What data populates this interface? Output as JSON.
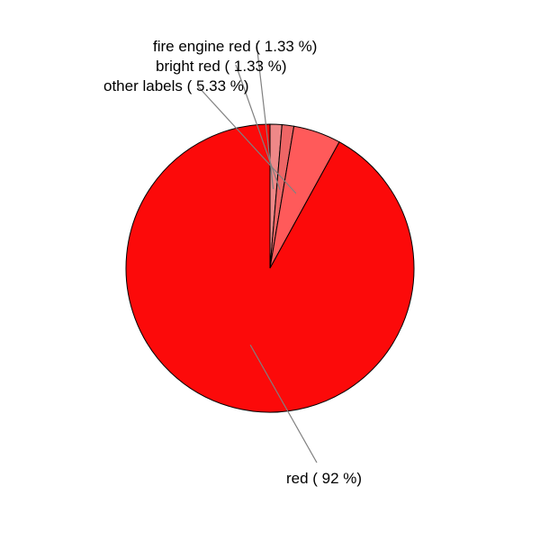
{
  "chart_data": {
    "type": "pie",
    "title": "",
    "direction": "clockwise",
    "start_angle": "12 o'clock",
    "slices": [
      {
        "label": "fire engine red ( 1.33 %)",
        "value": 1.33,
        "color": "#ee8888"
      },
      {
        "label": "bright red ( 1.33 %)",
        "value": 1.33,
        "color": "#ee6666"
      },
      {
        "label": "other labels ( 5.33 %)",
        "value": 5.33,
        "color": "#ff5a5a"
      },
      {
        "label": "red ( 92 %)",
        "value": 92,
        "color": "#fc0a0a"
      }
    ]
  }
}
